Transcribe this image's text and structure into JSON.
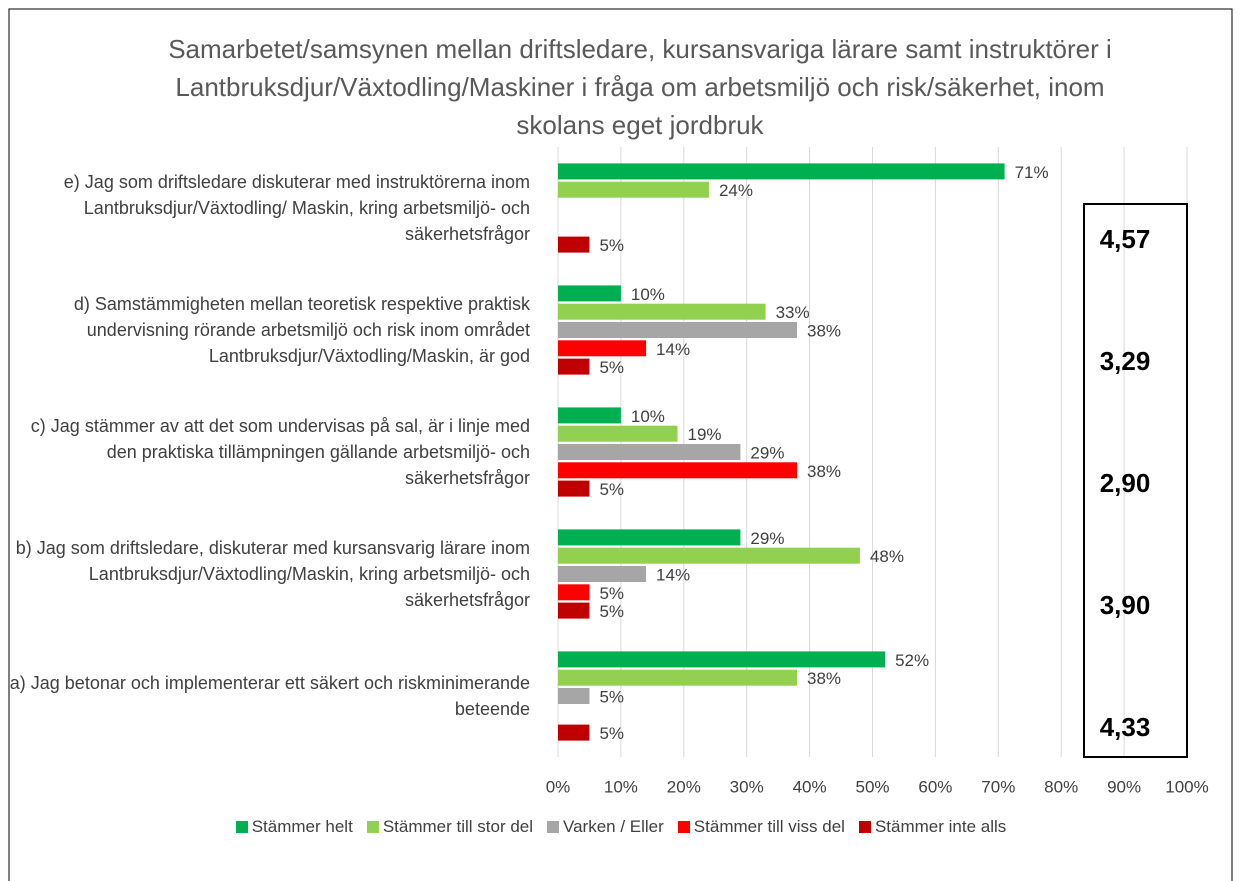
{
  "chart_data": {
    "type": "bar",
    "orientation": "horizontal",
    "title": "Samarbetet/samsynen mellan driftsledare, kursansvariga lärare samt instruktörer i Lantbruksdjur/Växtodling/Maskiner i fråga om arbetsmiljö och risk/säkerhet, inom skolans eget jordbruk",
    "categories": [
      "e) Jag som driftsledare diskuterar med instruktörerna inom Lantbruksdjur/Växtodling/ Maskin, kring arbetsmiljö- och säkerhetsfrågor",
      "d) Samstämmigheten mellan teoretisk respektive praktisk undervisning rörande arbetsmiljö och risk inom området Lantbruksdjur/Växtodling/Maskin, är god",
      "c) Jag stämmer av att det som undervisas på sal, är i linje med den praktiska tillämpningen gällande arbetsmiljö- och säkerhetsfrågor",
      "b) Jag som driftsledare, diskuterar med kursansvarig lärare inom Lantbruksdjur/Växtodling/Maskin, kring arbetsmiljö- och säkerhetsfrågor",
      "a) Jag betonar och implementerar ett säkert och riskminimerande beteende"
    ],
    "series": [
      {
        "name": "Stämmer helt",
        "color": "#00b050",
        "values": [
          71,
          10,
          10,
          29,
          52
        ],
        "value_labels": [
          "71%",
          "10%",
          "10%",
          "29%",
          "52%"
        ]
      },
      {
        "name": "Stämmer till stor del",
        "color": "#92d050",
        "values": [
          24,
          33,
          19,
          48,
          38
        ],
        "value_labels": [
          "24%",
          "33%",
          "19%",
          "48%",
          "38%"
        ]
      },
      {
        "name": "Varken / Eller",
        "color": "#a6a6a6",
        "values": [
          null,
          38,
          29,
          14,
          5
        ],
        "value_labels": [
          null,
          "38%",
          "29%",
          "14%",
          "5%"
        ]
      },
      {
        "name": "Stämmer till viss del",
        "color": "#ff0000",
        "values": [
          null,
          14,
          38,
          5,
          null
        ],
        "value_labels": [
          null,
          "14%",
          "38%",
          "5%",
          null
        ]
      },
      {
        "name": "Stämmer inte alls",
        "color": "#c00000",
        "values": [
          5,
          5,
          5,
          5,
          5
        ],
        "value_labels": [
          "5%",
          "5%",
          "5%",
          "5%",
          "5%"
        ]
      }
    ],
    "annotations": [
      "4,57",
      "3,29",
      "2,90",
      "3,90",
      "4,33"
    ],
    "xlim": [
      0,
      100
    ],
    "xticks": [
      {
        "value": 0,
        "label": "0%"
      },
      {
        "value": 10,
        "label": "10%"
      },
      {
        "value": 20,
        "label": "20%"
      },
      {
        "value": 30,
        "label": "30%"
      },
      {
        "value": 40,
        "label": "40%"
      },
      {
        "value": 50,
        "label": "50%"
      },
      {
        "value": 60,
        "label": "60%"
      },
      {
        "value": 70,
        "label": "70%"
      },
      {
        "value": 80,
        "label": "80%"
      },
      {
        "value": 90,
        "label": "90%"
      },
      {
        "value": 100,
        "label": "100%"
      }
    ],
    "grid": true,
    "legend": "bottom"
  }
}
